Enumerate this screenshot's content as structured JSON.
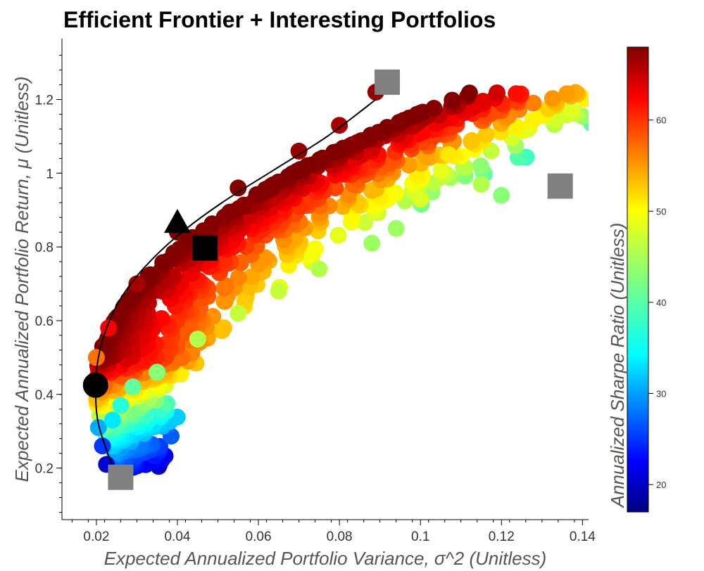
{
  "chart_data": {
    "type": "scatter",
    "title": "Efficient Frontier + Interesting Portfolios",
    "xlabel": "Expected Annualized Portfolio Variance, σ^2 (Unitless)",
    "ylabel": "Expected Annualized Portfolio Return, μ (Unitless)",
    "colorbar_label": "Annualized Sharpe Ratio (Unitless)",
    "xlim": [
      0.0115,
      0.1415
    ],
    "ylim": [
      0.06,
      1.365
    ],
    "x_ticks": [
      0.02,
      0.04,
      0.06,
      0.08,
      0.1,
      0.12,
      0.14
    ],
    "x_tick_labels": [
      "0.02",
      "0.04",
      "0.06",
      "0.08",
      "0.1",
      "0.12",
      "0.14"
    ],
    "y_ticks": [
      0.2,
      0.4,
      0.6,
      0.8,
      1.0,
      1.2
    ],
    "y_tick_labels": [
      "0.2",
      "0.4",
      "0.6",
      "0.8",
      "1",
      "1.2"
    ],
    "colorbar_range": [
      17,
      68
    ],
    "colorbar_ticks": [
      20,
      30,
      40,
      50,
      60
    ],
    "colorbar_tick_labels": [
      "20",
      "30",
      "40",
      "50",
      "60"
    ],
    "colormap": "jet",
    "random_portfolios_note": "cloud of ~1000 random portfolios, colored by Sharpe ratio",
    "random_portfolios_sample": [
      {
        "x": 0.0225,
        "y": 0.21,
        "sharpe": 21
      },
      {
        "x": 0.0215,
        "y": 0.26,
        "sharpe": 26
      },
      {
        "x": 0.0205,
        "y": 0.31,
        "sharpe": 32
      },
      {
        "x": 0.024,
        "y": 0.33,
        "sharpe": 35
      },
      {
        "x": 0.026,
        "y": 0.37,
        "sharpe": 38
      },
      {
        "x": 0.029,
        "y": 0.42,
        "sharpe": 41
      },
      {
        "x": 0.035,
        "y": 0.46,
        "sharpe": 43
      },
      {
        "x": 0.045,
        "y": 0.55,
        "sharpe": 45
      },
      {
        "x": 0.055,
        "y": 0.62,
        "sharpe": 46
      },
      {
        "x": 0.065,
        "y": 0.68,
        "sharpe": 46
      },
      {
        "x": 0.075,
        "y": 0.74,
        "sharpe": 45
      },
      {
        "x": 0.088,
        "y": 0.81,
        "sharpe": 44
      },
      {
        "x": 0.094,
        "y": 0.85,
        "sharpe": 44
      },
      {
        "x": 0.1,
        "y": 0.93,
        "sharpe": 47
      },
      {
        "x": 0.107,
        "y": 1.05,
        "sharpe": 50
      },
      {
        "x": 0.115,
        "y": 0.97,
        "sharpe": 45
      },
      {
        "x": 0.12,
        "y": 0.94,
        "sharpe": 43
      },
      {
        "x": 0.02,
        "y": 0.5,
        "sharpe": 56
      },
      {
        "x": 0.023,
        "y": 0.58,
        "sharpe": 62
      },
      {
        "x": 0.03,
        "y": 0.7,
        "sharpe": 66
      },
      {
        "x": 0.04,
        "y": 0.84,
        "sharpe": 68
      },
      {
        "x": 0.055,
        "y": 0.96,
        "sharpe": 68
      },
      {
        "x": 0.07,
        "y": 1.06,
        "sharpe": 67
      },
      {
        "x": 0.08,
        "y": 1.13,
        "sharpe": 66
      },
      {
        "x": 0.089,
        "y": 1.22,
        "sharpe": 67
      }
    ],
    "efficient_frontier_curve": [
      {
        "x": 0.0238,
        "y": 0.21
      },
      {
        "x": 0.0205,
        "y": 0.32
      },
      {
        "x": 0.0198,
        "y": 0.42
      },
      {
        "x": 0.0205,
        "y": 0.5
      },
      {
        "x": 0.0225,
        "y": 0.58
      },
      {
        "x": 0.026,
        "y": 0.66
      },
      {
        "x": 0.0315,
        "y": 0.74
      },
      {
        "x": 0.04,
        "y": 0.83
      },
      {
        "x": 0.051,
        "y": 0.92
      },
      {
        "x": 0.064,
        "y": 1.01
      },
      {
        "x": 0.077,
        "y": 1.1
      },
      {
        "x": 0.089,
        "y": 1.2
      }
    ],
    "special_portfolios": [
      {
        "marker": "circle",
        "color": "#000000",
        "x": 0.0198,
        "y": 0.425
      },
      {
        "marker": "triangle",
        "color": "#000000",
        "x": 0.04,
        "y": 0.865
      },
      {
        "marker": "square",
        "color": "#000000",
        "x": 0.0468,
        "y": 0.797
      },
      {
        "marker": "square",
        "color": "#808080",
        "x": 0.026,
        "y": 0.175
      },
      {
        "marker": "square",
        "color": "#808080",
        "x": 0.0918,
        "y": 1.247
      },
      {
        "marker": "square",
        "color": "#808080",
        "x": 0.1345,
        "y": 0.965
      }
    ]
  }
}
